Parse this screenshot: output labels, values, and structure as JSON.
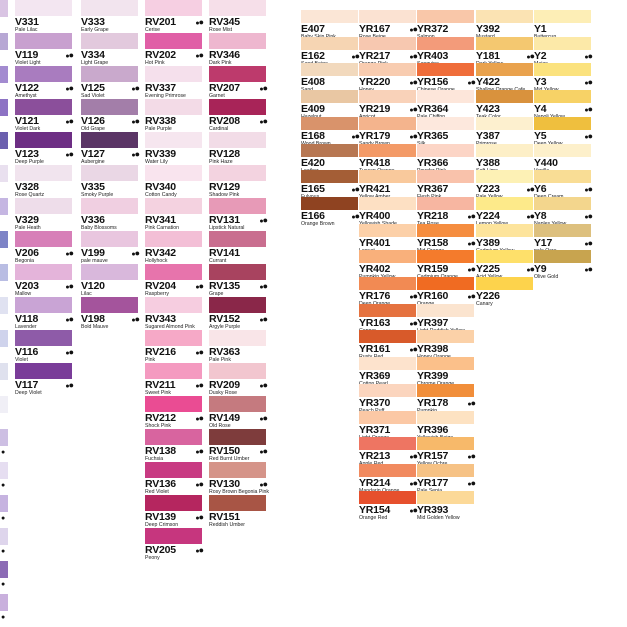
{
  "swatches": [
    {
      "code": "V331",
      "name": "Pale Lilac",
      "color": "#f3e6f1",
      "col": 0,
      "row": 0,
      "dots": false
    },
    {
      "code": "V119",
      "name": "Violet Light",
      "color": "#c8a0cf",
      "col": 0,
      "row": 1,
      "dots": true
    },
    {
      "code": "V122",
      "name": "Amethyst",
      "color": "#a97cbf",
      "col": 0,
      "row": 2,
      "dots": true
    },
    {
      "code": "V121",
      "name": "Violet Dark",
      "color": "#8b4f9b",
      "col": 0,
      "row": 3,
      "dots": true
    },
    {
      "code": "V123",
      "name": "Deep Purple",
      "color": "#6d2e84",
      "col": 0,
      "row": 4,
      "dots": true
    },
    {
      "code": "V328",
      "name": "Rose Quartz",
      "color": "#f1e4ee",
      "col": 0,
      "row": 5,
      "dots": false
    },
    {
      "code": "V329",
      "name": "Pale Heath",
      "color": "#eeddea",
      "col": 0,
      "row": 6,
      "dots": false
    },
    {
      "code": "V206",
      "name": "Begonia",
      "color": "#d77fb8",
      "col": 0,
      "row": 7,
      "dots": true
    },
    {
      "code": "V203",
      "name": "Mallow",
      "color": "#e4b4da",
      "col": 0,
      "row": 8,
      "dots": true
    },
    {
      "code": "V118",
      "name": "Lavender",
      "color": "#c9a4d5",
      "col": 0,
      "row": 9,
      "dots": true
    },
    {
      "code": "V116",
      "name": "Violet",
      "color": "#8e5ba8",
      "col": 0,
      "row": 10,
      "dots": true
    },
    {
      "code": "V117",
      "name": "Deep Violet",
      "color": "#7a3c99",
      "col": 0,
      "row": 11,
      "dots": true
    },
    {
      "code": "V333",
      "name": "Early Grape",
      "color": "#f2e4ee",
      "col": 1,
      "row": 0,
      "dots": false
    },
    {
      "code": "V334",
      "name": "Light Grape",
      "color": "#e2c9dd",
      "col": 1,
      "row": 1,
      "dots": false
    },
    {
      "code": "V125",
      "name": "Sad Violet",
      "color": "#c9a9cc",
      "col": 1,
      "row": 2,
      "dots": true
    },
    {
      "code": "V126",
      "name": "Old Grape",
      "color": "#a37ea9",
      "col": 1,
      "row": 3,
      "dots": true
    },
    {
      "code": "V127",
      "name": "Aubergine",
      "color": "#5b3566",
      "col": 1,
      "row": 4,
      "dots": true
    },
    {
      "code": "V335",
      "name": "Smoky Purple",
      "color": "#ead7e5",
      "col": 1,
      "row": 5,
      "dots": false
    },
    {
      "code": "V336",
      "name": "Baby Blossoms",
      "color": "#f0cfe1",
      "col": 1,
      "row": 6,
      "dots": false
    },
    {
      "code": "V199",
      "name": "pale mauve",
      "color": "#e9c6df",
      "col": 1,
      "row": 7,
      "dots": true
    },
    {
      "code": "V120",
      "name": "Lilac",
      "color": "#d9b8dc",
      "col": 1,
      "row": 8,
      "dots": false
    },
    {
      "code": "V198",
      "name": "Bold Mauve",
      "color": "#a4549c",
      "col": 1,
      "row": 9,
      "dots": true
    },
    {
      "code": "RV201",
      "name": "Cerise",
      "color": "#f6cfe2",
      "col": 2,
      "row": 0,
      "dots": true
    },
    {
      "code": "RV202",
      "name": "Hot Pink",
      "color": "#e05fa6",
      "col": 2,
      "row": 1,
      "dots": true
    },
    {
      "code": "RV337",
      "name": "Evening Primrose",
      "color": "#f5e0ec",
      "col": 2,
      "row": 2,
      "dots": false
    },
    {
      "code": "RV338",
      "name": "Pale Purple",
      "color": "#f3dbe7",
      "col": 2,
      "row": 3,
      "dots": false
    },
    {
      "code": "RV339",
      "name": "Water Lily",
      "color": "#f6e6ef",
      "col": 2,
      "row": 4,
      "dots": false
    },
    {
      "code": "RV340",
      "name": "Cotton Candy",
      "color": "#f9e4ee",
      "col": 2,
      "row": 5,
      "dots": false
    },
    {
      "code": "RV341",
      "name": "Pink Carnation",
      "color": "#f4d2e0",
      "col": 2,
      "row": 6,
      "dots": false
    },
    {
      "code": "RV342",
      "name": "Hollyhock",
      "color": "#f3bfd6",
      "col": 2,
      "row": 7,
      "dots": false
    },
    {
      "code": "RV204",
      "name": "Raspberry",
      "color": "#e774ac",
      "col": 2,
      "row": 8,
      "dots": true
    },
    {
      "code": "RV343",
      "name": "Sugared Almond Pink",
      "color": "#f6cde0",
      "col": 2,
      "row": 9,
      "dots": false
    },
    {
      "code": "RV216",
      "name": "Pink",
      "color": "#f6a9c7",
      "col": 2,
      "row": 10,
      "dots": true
    },
    {
      "code": "RV211",
      "name": "Sweet Pink",
      "color": "#f49ac0",
      "col": 2,
      "row": 11,
      "dots": true
    },
    {
      "code": "RV212",
      "name": "Shock Pink",
      "color": "#ea4c93",
      "col": 2,
      "row": 12,
      "dots": true
    },
    {
      "code": "RV138",
      "name": "Fuchsia",
      "color": "#d8649f",
      "col": 2,
      "row": 13,
      "dots": true
    },
    {
      "code": "RV136",
      "name": "Red Violet",
      "color": "#c83a82",
      "col": 2,
      "row": 14,
      "dots": true
    },
    {
      "code": "RV139",
      "name": "Deep Crimson",
      "color": "#b5265f",
      "col": 2,
      "row": 15,
      "dots": true
    },
    {
      "code": "RV205",
      "name": "Peony",
      "color": "#c6367e",
      "col": 2,
      "row": 16,
      "dots": true
    },
    {
      "code": "RV345",
      "name": "Rose Mist",
      "color": "#f6dfe9",
      "col": 3,
      "row": 0,
      "dots": false
    },
    {
      "code": "RV346",
      "name": "Dark Pink",
      "color": "#eeb7cf",
      "col": 3,
      "row": 1,
      "dots": false
    },
    {
      "code": "RV207",
      "name": "Garnet",
      "color": "#bd3a6c",
      "col": 3,
      "row": 2,
      "dots": true
    },
    {
      "code": "RV208",
      "name": "Cardinal",
      "color": "#a82458",
      "col": 3,
      "row": 3,
      "dots": true
    },
    {
      "code": "RV128",
      "name": "Pink Haze",
      "color": "#f2dce7",
      "col": 3,
      "row": 4,
      "dots": false
    },
    {
      "code": "RV129",
      "name": "Shadow Pink",
      "color": "#f3d3e0",
      "col": 3,
      "row": 5,
      "dots": false
    },
    {
      "code": "RV131",
      "name": "Lipstick Natural",
      "color": "#e79ab7",
      "col": 3,
      "row": 6,
      "dots": true
    },
    {
      "code": "RV141",
      "name": "Currant",
      "color": "#c96e8f",
      "col": 3,
      "row": 7,
      "dots": false
    },
    {
      "code": "RV135",
      "name": "Grape",
      "color": "#a8435f",
      "col": 3,
      "row": 8,
      "dots": true
    },
    {
      "code": "RV152",
      "name": "Argyle Purple",
      "color": "#8a2749",
      "col": 3,
      "row": 9,
      "dots": true
    },
    {
      "code": "RV363",
      "name": "Pale Pink",
      "color": "#f9e5e8",
      "col": 3,
      "row": 10,
      "dots": false
    },
    {
      "code": "RV209",
      "name": "Dusky Rose",
      "color": "#f2c6cf",
      "col": 3,
      "row": 11,
      "dots": true
    },
    {
      "code": "RV149",
      "name": "Old Rose",
      "color": "#c57a7f",
      "col": 3,
      "row": 12,
      "dots": true
    },
    {
      "code": "RV150",
      "name": "Red Burnt Umber",
      "color": "#7e3c3c",
      "col": 3,
      "row": 13,
      "dots": true
    },
    {
      "code": "RV130",
      "name": "Rosy Brown Begonia Pink",
      "color": "#d59489",
      "col": 3,
      "row": 14,
      "dots": true
    },
    {
      "code": "RV151",
      "name": "Reddish Umber",
      "color": "#a85545",
      "col": 3,
      "row": 15,
      "dots": false
    },
    {
      "code": "E407",
      "name": "Baby Skin Pink",
      "color": "#fbe6d6",
      "col": 4,
      "row": 0,
      "dots": false
    },
    {
      "code": "E162",
      "name": "Sand Beige",
      "color": "#f6d5b3",
      "col": 4,
      "row": 1,
      "dots": true
    },
    {
      "code": "E408",
      "name": "Sand",
      "color": "#f2d9bd",
      "col": 4,
      "row": 2,
      "dots": false
    },
    {
      "code": "E409",
      "name": "Hazelnut",
      "color": "#e9c7a3",
      "col": 4,
      "row": 3,
      "dots": false
    },
    {
      "code": "E168",
      "name": "Wood Brown",
      "color": "#d9936b",
      "col": 4,
      "row": 4,
      "dots": true
    },
    {
      "code": "E420",
      "name": "Leather",
      "color": "#b77752",
      "col": 4,
      "row": 5,
      "dots": false
    },
    {
      "code": "E165",
      "name": "Fulvous",
      "color": "#a45e36",
      "col": 4,
      "row": 6,
      "dots": true
    },
    {
      "code": "E166",
      "name": "Orange Brown",
      "color": "#8f4321",
      "col": 4,
      "row": 7,
      "dots": true
    },
    {
      "code": "YR167",
      "name": "Rose Beige",
      "color": "#fbe2d2",
      "col": 5,
      "row": 0,
      "dots": true
    },
    {
      "code": "YR217",
      "name": "Orange Pink",
      "color": "#f7c8b0",
      "col": 5,
      "row": 1,
      "dots": true
    },
    {
      "code": "YR220",
      "name": "Honey",
      "color": "#f8ccb0",
      "col": 5,
      "row": 2,
      "dots": true
    },
    {
      "code": "YR219",
      "name": "Apricot",
      "color": "#f9d2b9",
      "col": 5,
      "row": 3,
      "dots": true
    },
    {
      "code": "YR179",
      "name": "Sandy Brown",
      "color": "#f4b48d",
      "col": 5,
      "row": 4,
      "dots": true
    },
    {
      "code": "YR418",
      "name": "Tuscan Orange",
      "color": "#f39a67",
      "col": 5,
      "row": 5,
      "dots": false
    },
    {
      "code": "YR421",
      "name": "Yellow Amber",
      "color": "#f9c99c",
      "col": 5,
      "row": 6,
      "dots": false
    },
    {
      "code": "YR400",
      "name": "Yellowish Shade",
      "color": "#fde0c3",
      "col": 5,
      "row": 7,
      "dots": false
    },
    {
      "code": "YR401",
      "name": "Loquat",
      "color": "#fcd0a8",
      "col": 5,
      "row": 8,
      "dots": false
    },
    {
      "code": "YR402",
      "name": "Pumpkin Yellow",
      "color": "#f9b07b",
      "col": 5,
      "row": 9,
      "dots": false
    },
    {
      "code": "YR176",
      "name": "Deep Orange",
      "color": "#f28a53",
      "col": 5,
      "row": 10,
      "dots": true
    },
    {
      "code": "YR163",
      "name": "Copper",
      "color": "#e5723f",
      "col": 5,
      "row": 11,
      "dots": true
    },
    {
      "code": "YR161",
      "name": "Rusty Red",
      "color": "#d85a2a",
      "col": 5,
      "row": 12,
      "dots": true
    },
    {
      "code": "YR369",
      "name": "Cotton Pearl",
      "color": "#fde3cd",
      "col": 5,
      "row": 13,
      "dots": false
    },
    {
      "code": "YR370",
      "name": "Peach Puff",
      "color": "#fbd5be",
      "col": 5,
      "row": 14,
      "dots": false
    },
    {
      "code": "YR371",
      "name": "Light Orange",
      "color": "#fbc8a5",
      "col": 5,
      "row": 15,
      "dots": false
    },
    {
      "code": "YR213",
      "name": "Apple Red",
      "color": "#ee7562",
      "col": 5,
      "row": 16,
      "dots": true
    },
    {
      "code": "YR214",
      "name": "Mandarin Orange",
      "color": "#f18a5f",
      "col": 5,
      "row": 17,
      "dots": true
    },
    {
      "code": "YR154",
      "name": "Orange Red",
      "color": "#e6502d",
      "col": 5,
      "row": 18,
      "dots": true
    },
    {
      "code": "YR372",
      "name": "Salmon",
      "color": "#f9c7a9",
      "col": 6,
      "row": 0,
      "dots": false
    },
    {
      "code": "YR403",
      "name": "Sanguine",
      "color": "#f39b7a",
      "col": 6,
      "row": 1,
      "dots": false
    },
    {
      "code": "YR156",
      "name": "Chinese Orange",
      "color": "#ef6d3a",
      "col": 6,
      "row": 2,
      "dots": true
    },
    {
      "code": "YR364",
      "name": "Pale Chiffon",
      "color": "#fde6da",
      "col": 6,
      "row": 3,
      "dots": false
    },
    {
      "code": "YR365",
      "name": "Silk",
      "color": "#fde8dd",
      "col": 6,
      "row": 4,
      "dots": false
    },
    {
      "code": "YR366",
      "name": "Powder Pink",
      "color": "#fcd5c6",
      "col": 6,
      "row": 5,
      "dots": false
    },
    {
      "code": "YR367",
      "name": "Flesh Pink",
      "color": "#f9c2ab",
      "col": 6,
      "row": 6,
      "dots": false
    },
    {
      "code": "YR218",
      "name": "Tea Rose",
      "color": "#f7b6a1",
      "col": 6,
      "row": 7,
      "dots": true
    },
    {
      "code": "YR158",
      "name": "Mid Orange",
      "color": "#f58d3f",
      "col": 6,
      "row": 8,
      "dots": true
    },
    {
      "code": "YR159",
      "name": "Cadmium Orange",
      "color": "#f47b2c",
      "col": 6,
      "row": 9,
      "dots": true
    },
    {
      "code": "YR160",
      "name": "Orange",
      "color": "#f06b22",
      "col": 6,
      "row": 10,
      "dots": true
    },
    {
      "code": "YR397",
      "name": "Light Reddish Yellow",
      "color": "#fbe4cf",
      "col": 6,
      "row": 11,
      "dots": false
    },
    {
      "code": "YR398",
      "name": "Honey Orange",
      "color": "#fbd1a8",
      "col": 6,
      "row": 12,
      "dots": false
    },
    {
      "code": "YR399",
      "name": "Chrome Orange",
      "color": "#fbc08a",
      "col": 6,
      "row": 13,
      "dots": false
    },
    {
      "code": "YR178",
      "name": "Pumpkin",
      "color": "#f18e3a",
      "col": 6,
      "row": 14,
      "dots": true
    },
    {
      "code": "YR396",
      "name": "Yellowish Beige",
      "color": "#fde2c2",
      "col": 6,
      "row": 15,
      "dots": false
    },
    {
      "code": "YR157",
      "name": "Yellow Ochre",
      "color": "#f7b96a",
      "col": 6,
      "row": 16,
      "dots": true
    },
    {
      "code": "YR177",
      "name": "Pale Sepia",
      "color": "#f6c285",
      "col": 6,
      "row": 17,
      "dots": true
    },
    {
      "code": "YR393",
      "name": "Mid Golden Yellow",
      "color": "#fcd998",
      "col": 6,
      "row": 18,
      "dots": false
    },
    {
      "code": "Y392",
      "name": "Mustard",
      "color": "#fbe3b3",
      "col": 7,
      "row": 0,
      "dots": false
    },
    {
      "code": "Y181",
      "name": "Dark Yellow",
      "color": "#f4c870",
      "col": 7,
      "row": 1,
      "dots": true
    },
    {
      "code": "Y422",
      "name": "Shallow Orange Cafe",
      "color": "#e9a24d",
      "col": 7,
      "row": 2,
      "dots": false
    },
    {
      "code": "Y423",
      "name": "Teak Color",
      "color": "#d9923d",
      "col": 7,
      "row": 3,
      "dots": false
    },
    {
      "code": "Y387",
      "name": "Primrose",
      "color": "#fdf0cf",
      "col": 7,
      "row": 4,
      "dots": false
    },
    {
      "code": "Y388",
      "name": "Soft Lime",
      "color": "#fdefc7",
      "col": 7,
      "row": 5,
      "dots": false
    },
    {
      "code": "Y223",
      "name": "Pale Yellow",
      "color": "#fdf1b5",
      "col": 7,
      "row": 6,
      "dots": true
    },
    {
      "code": "Y224",
      "name": "Lemon Yellow",
      "color": "#fdea8a",
      "col": 7,
      "row": 7,
      "dots": true
    },
    {
      "code": "Y389",
      "name": "Cadmium Yellow",
      "color": "#fde49c",
      "col": 7,
      "row": 8,
      "dots": false
    },
    {
      "code": "Y225",
      "name": "Acid Yellow",
      "color": "#fee06a",
      "col": 7,
      "row": 9,
      "dots": true
    },
    {
      "code": "Y226",
      "name": "Canary",
      "color": "#fdd34c",
      "col": 7,
      "row": 10,
      "dots": false
    },
    {
      "code": "Y1",
      "name": "Buttercup",
      "color": "#fdeeb6",
      "col": 8,
      "row": 0,
      "dots": false
    },
    {
      "code": "Y2",
      "name": "Maize",
      "color": "#fce9a8",
      "col": 8,
      "row": 1,
      "dots": true
    },
    {
      "code": "Y3",
      "name": "Mid Yellow",
      "color": "#fbe27e",
      "col": 8,
      "row": 2,
      "dots": true
    },
    {
      "code": "Y4",
      "name": "Napoli Yellow",
      "color": "#f7d266",
      "col": 8,
      "row": 3,
      "dots": true
    },
    {
      "code": "Y5",
      "name": "Deep Yellow",
      "color": "#efbf3e",
      "col": 8,
      "row": 4,
      "dots": true
    },
    {
      "code": "Y440",
      "name": "Vanilla",
      "color": "#fdf0cb",
      "col": 8,
      "row": 5,
      "dots": false
    },
    {
      "code": "Y6",
      "name": "Deep Cream",
      "color": "#f9dd95",
      "col": 8,
      "row": 6,
      "dots": true
    },
    {
      "code": "Y8",
      "name": "Naples Yellow",
      "color": "#f3d68d",
      "col": 8,
      "row": 7,
      "dots": true
    },
    {
      "code": "Y17",
      "name": "pale Ocre",
      "color": "#ddc07e",
      "col": 8,
      "row": 8,
      "dots": true
    },
    {
      "code": "Y9",
      "name": "Olive Gold",
      "color": "#c8a44f",
      "col": 8,
      "row": 9,
      "dots": true
    }
  ],
  "edge_colors": [
    "#d9c4e3",
    "#b7a7d4",
    "#a38bd0",
    "#8d73c4",
    "#6b5fae",
    "#e9e0ef",
    "#c5b6e2",
    "#7d83c6",
    "#b9bde3",
    "#e0e2f1",
    "#cfd3ec",
    "#dfe1ee",
    "#f0eff6",
    "#cdbfe3",
    "#e6def1",
    "#c6b3e0",
    "#ded5ec",
    "#8c6bb5",
    "#c9b0dd"
  ]
}
